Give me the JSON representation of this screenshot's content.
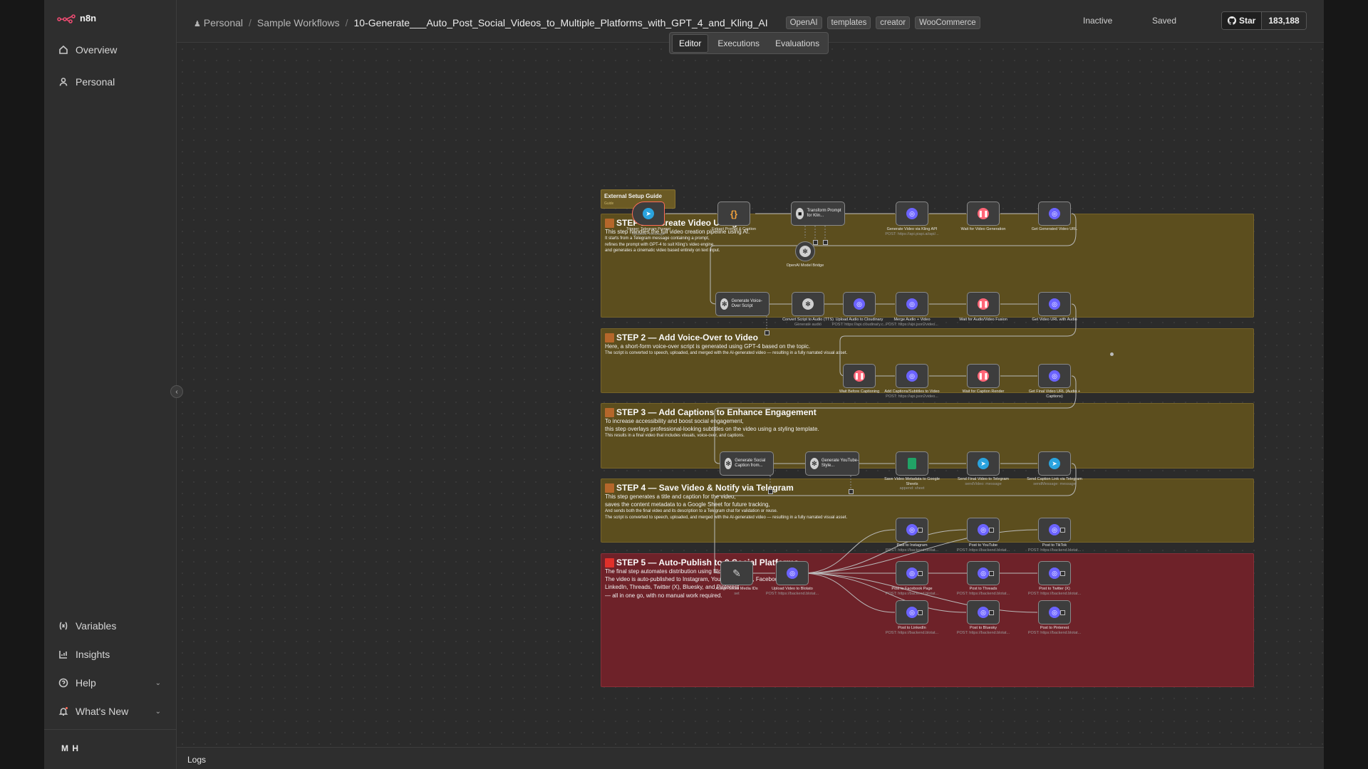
{
  "app": {
    "logo_text": "n8n"
  },
  "sidebar": {
    "items": [
      {
        "label": "Overview",
        "icon": "home-icon"
      },
      {
        "label": "Personal",
        "icon": "user-icon"
      }
    ],
    "bottom_items": [
      {
        "label": "Variables",
        "icon": "variables-icon"
      },
      {
        "label": "Insights",
        "icon": "insights-icon"
      },
      {
        "label": "Help",
        "icon": "help-icon"
      },
      {
        "label": "What's New",
        "icon": "bell-icon"
      }
    ],
    "user_initials": "M H"
  },
  "breadcrumb": {
    "project": "Personal",
    "folder": "Sample Workflows",
    "workflow_name": "10-Generate___Auto_Post_Social_Videos_to_Multiple_Platforms_with_GPT_4_and_Kling_AI",
    "tags": [
      "OpenAI",
      "templates",
      "creator",
      "WooCommerce"
    ]
  },
  "header": {
    "active_status": "Inactive",
    "save_status": "Saved"
  },
  "github": {
    "star_label": "Star",
    "star_count": "183,188"
  },
  "tabs": [
    "Editor",
    "Executions",
    "Evaluations"
  ],
  "active_tab": "Editor",
  "logs_label": "Logs",
  "setup_guide": {
    "title": "External Setup Guide",
    "subtitle": "Guide"
  },
  "steps": [
    {
      "title": "STEP 1 — Create Video Using AI",
      "lines": [
        "This step handles the full video creation pipeline using AI."
      ],
      "small_lines": [
        "It starts from a Telegram message containing a prompt,",
        "refines the prompt with GPT-4 to suit Kling's video engine,",
        "and generates a cinematic video based entirely on text input."
      ]
    },
    {
      "title": "STEP 2 — Add Voice-Over to Video",
      "lines": [
        "Here, a short-form voice-over script is generated using GPT-4 based on the topic."
      ],
      "small_lines": [
        "The script is converted to speech, uploaded, and merged with the AI-generated video — resulting in a fully narrated visual asset."
      ]
    },
    {
      "title": "STEP 3 — Add Captions to Enhance Engagement",
      "lines": [
        "To increase accessibility and boost social engagement,",
        "this step overlays professional-looking subtitles on the video using a styling template."
      ],
      "small_lines": [
        "This results in a final video that includes visuals, voice-over, and captions."
      ]
    },
    {
      "title": "STEP 4 — Save Video & Notify via Telegram",
      "lines": [
        "This step generates a title and caption for the video,",
        "saves the content metadata to a Google Sheet for future tracking,"
      ],
      "small_lines": [
        "And sends both the final video and its description to a Telegram chat for validation or reuse.",
        "The script is converted to speech, uploaded, and merged with the AI-generated video — resulting in a fully narrated visual asset."
      ]
    },
    {
      "title": "STEP 5 — Auto-Publish to 9 Social Platforms",
      "lines": [
        "The final step automates distribution using Blotato's API.",
        "The video is auto-published to Instagram, YouTube, TikTok, Facebook,",
        "LinkedIn, Threads, Twitter (X), Bluesky, and Pinterest",
        "— all in one go, with no manual work required."
      ],
      "small_lines": []
    }
  ],
  "nodes": {
    "trigger": {
      "name": "Trigger: Telegram Prompt",
      "sub": "Updates: message",
      "icon": "telegram-icon"
    },
    "extract": {
      "name": "Extract Prompt & Caption",
      "sub": "",
      "icon": "code-icon"
    },
    "transform": {
      "name": "Transform Prompt for Klin...",
      "sub": "",
      "icon": "robot-icon"
    },
    "openai_bridge": {
      "name": "OpenAI Model Bridge",
      "sub": "",
      "icon": "openai-icon"
    },
    "kling": {
      "name": "Generate Video via Kling API",
      "sub": "POST: https://api.piapi.ai/api/...",
      "icon": "globe-icon"
    },
    "wait_video": {
      "name": "Wait for Video Generation",
      "sub": "",
      "icon": "wait-icon"
    },
    "get_video": {
      "name": "Get Generated Video URL",
      "sub": "",
      "icon": "globe-icon"
    },
    "voice_script": {
      "name": "Generate Voice-Over Script",
      "sub": "Message Model",
      "icon": "openai-icon"
    },
    "tts": {
      "name": "Convert Script to Audio (TTS)",
      "sub": "Generate audio",
      "icon": "openai-icon"
    },
    "cloudinary": {
      "name": "Upload Audio to Cloudinary",
      "sub": "POST: https://api.cloudinary.c...",
      "icon": "globe-icon"
    },
    "merge": {
      "name": "Merge Audio + Video",
      "sub": "POST: https://api.json2video...",
      "icon": "globe-icon"
    },
    "wait_fusion": {
      "name": "Wait for Audio/Video Fusion",
      "sub": "",
      "icon": "wait-icon"
    },
    "get_audio_video": {
      "name": "Get Video URL with Audio",
      "sub": "",
      "icon": "globe-icon"
    },
    "wait_captioning": {
      "name": "Wait Before Captioning",
      "sub": "",
      "icon": "wait-icon"
    },
    "add_captions": {
      "name": "Add Captions/Subtitles to Video",
      "sub": "POST: https://api.json2video...",
      "icon": "globe-icon"
    },
    "wait_caption_render": {
      "name": "Wait for Caption Render",
      "sub": "",
      "icon": "wait-icon"
    },
    "final_video": {
      "name": "Get Final Video URL (Audio + Captions)",
      "sub": "",
      "icon": "globe-icon"
    },
    "social_caption": {
      "name": "Generate Social Caption from...",
      "sub": "Message Model",
      "icon": "openai-icon"
    },
    "youtube_style": {
      "name": "Generate YouTube-Style...",
      "sub": "Message Model",
      "icon": "openai-icon"
    },
    "save_sheet": {
      "name": "Save Video Metadata to Google Sheets",
      "sub": "append: sheet",
      "icon": "sheets-icon"
    },
    "send_video": {
      "name": "Send Final Video to Telegram",
      "sub": "sendVideo: message",
      "icon": "telegram-icon"
    },
    "send_caption": {
      "name": "Send Caption Link via Telegram",
      "sub": "sendMessage: message",
      "icon": "telegram-icon"
    },
    "assign_ids": {
      "name": "Assign Social Media IDs",
      "sub": "set",
      "icon": "pen-icon"
    },
    "upload_blotato": {
      "name": "Upload Video to Blotato",
      "sub": "POST: https://backend.blotat...",
      "icon": "globe-icon"
    },
    "instagram": {
      "name": "Post to Instagram",
      "sub": "POST: https://backend.blotat...",
      "icon": "globe-icon"
    },
    "youtube": {
      "name": "Post to YouTube",
      "sub": "POST: https://backend.blotat...",
      "icon": "globe-icon"
    },
    "tiktok": {
      "name": "Post to TikTok",
      "sub": "POST: https://backend.blotat...",
      "icon": "globe-icon"
    },
    "facebook": {
      "name": "Post to Facebook Page",
      "sub": "POST: https://backend.blotat...",
      "icon": "globe-icon"
    },
    "threads": {
      "name": "Post to Threads",
      "sub": "POST: https://backend.blotat...",
      "icon": "globe-icon"
    },
    "twitter": {
      "name": "Post to Twitter (X)",
      "sub": "POST: https://backend.blotat...",
      "icon": "globe-icon"
    },
    "linkedin": {
      "name": "Post to LinkedIn",
      "sub": "POST: https://backend.blotat...",
      "icon": "globe-icon"
    },
    "bluesky": {
      "name": "Post to Bluesky",
      "sub": "POST: https://backend.blotat...",
      "icon": "globe-icon"
    },
    "pinterest": {
      "name": "Post to Pinterest",
      "sub": "POST: https://backend.blotat...",
      "icon": "globe-icon"
    }
  },
  "colors": {
    "step_olive": "#5c4e1e",
    "step_red": "#6e2229",
    "accent": "#ff6d5a",
    "http_icon": "#6b63ff",
    "telegram": "#2aa3de",
    "wait": "#ff6577"
  }
}
